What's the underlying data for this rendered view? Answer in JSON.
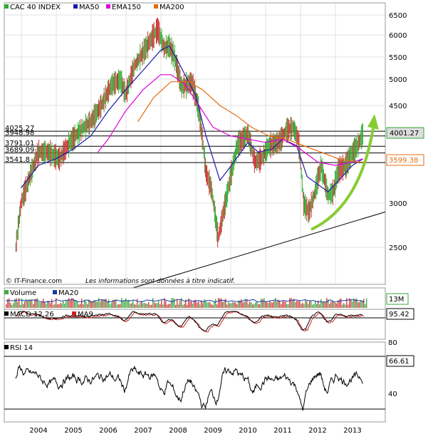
{
  "colors": {
    "price_up": "#33aa33",
    "price_down": "#cc3333",
    "ma50": "#1a1aaa",
    "ema150": "#dd00dd",
    "ma200": "#e86a10",
    "arrow": "#88cc33",
    "volume_up": "#44aa44",
    "volume_down": "#cc4444",
    "volume_ma20": "#1a3aaa",
    "macd": "#000000",
    "macd_signal": "#cc2222",
    "rsi": "#000000",
    "grid": "#e0e0e0",
    "label_box_highlight": "#dddddd"
  },
  "main_chart": {
    "legend": [
      {
        "label": "CAC 40 INDEX",
        "color": "#33aa33"
      },
      {
        "label": "MA50",
        "color": "#1a1aaa"
      },
      {
        "label": "EMA150",
        "color": "#dd00dd"
      },
      {
        "label": "MA200",
        "color": "#e86a10"
      }
    ],
    "source": "© IT-Finance.com",
    "disclaimer": "Les informations sont données à titre indicatif.",
    "last_value": "4001.27",
    "ma_value": "3599.38"
  },
  "volume_panel": {
    "legend": [
      {
        "label": "Volume",
        "color": "#44aa44"
      },
      {
        "label": "MA20",
        "color": "#1a3aaa"
      }
    ],
    "last_value": "13M"
  },
  "macd_panel": {
    "legend": [
      {
        "label": "MACD 12.26",
        "color": "#000000"
      },
      {
        "label": "MA9",
        "color": "#cc2222"
      }
    ],
    "last_value": "95.42"
  },
  "rsi_panel": {
    "legend": [
      {
        "label": "RSI 14",
        "color": "#000000"
      }
    ],
    "last_value": "66.61",
    "ticks": [
      "80",
      "40"
    ]
  },
  "chart_data": {
    "type": "line",
    "title": "CAC 40 INDEX",
    "x_ticks": [
      "2004",
      "2005",
      "2006",
      "2007",
      "2008",
      "2009",
      "2010",
      "2011",
      "2012",
      "2013"
    ],
    "y_ticks": [
      "6500",
      "6000",
      "5500",
      "5000",
      "4500",
      "3000",
      "2500"
    ],
    "ylim": [
      2000,
      6500
    ],
    "horizontal_levels": [
      {
        "label": "4025.27",
        "value": 4025.27
      },
      {
        "label": "3948.98",
        "value": 3948.98
      },
      {
        "label": "3791.01",
        "value": 3791.01
      },
      {
        "label": "3689.09",
        "value": 3689.09
      },
      {
        "label": "3541.8",
        "value": 3541.8
      }
    ],
    "series": [
      {
        "name": "CAC 40 INDEX",
        "x": [
          2003.35,
          2003.5,
          2003.75,
          2004.0,
          2004.3,
          2004.6,
          2004.9,
          2005.2,
          2005.5,
          2005.8,
          2006.1,
          2006.35,
          2006.5,
          2006.75,
          2007.0,
          2007.3,
          2007.42,
          2007.6,
          2007.75,
          2007.9,
          2008.1,
          2008.4,
          2008.6,
          2008.8,
          2008.95,
          2009.15,
          2009.4,
          2009.7,
          2010.0,
          2010.2,
          2010.4,
          2010.6,
          2010.9,
          2011.1,
          2011.3,
          2011.45,
          2011.6,
          2011.75,
          2011.9,
          2012.1,
          2012.3,
          2012.45,
          2012.6,
          2012.8,
          2013.0,
          2013.15,
          2013.3
        ],
        "values": [
          2500,
          3000,
          3350,
          3700,
          3700,
          3600,
          3850,
          4050,
          4200,
          4500,
          4900,
          5000,
          4700,
          5300,
          5600,
          6000,
          6150,
          5700,
          5750,
          5500,
          4850,
          4950,
          4400,
          3400,
          3200,
          2600,
          3100,
          3800,
          4000,
          3550,
          3600,
          3800,
          3850,
          4050,
          4100,
          3900,
          3000,
          2900,
          3100,
          3500,
          3100,
          3150,
          3450,
          3500,
          3700,
          3800,
          4000
        ]
      },
      {
        "name": "MA50",
        "x": [
          2003.5,
          2004.0,
          2004.5,
          2005.0,
          2005.5,
          2006.0,
          2006.5,
          2007.0,
          2007.5,
          2007.75,
          2008.0,
          2008.5,
          2008.8,
          2009.2,
          2009.6,
          2010.0,
          2010.3,
          2010.7,
          2011.0,
          2011.4,
          2011.7,
          2012.0,
          2012.3,
          2012.6,
          2013.0,
          2013.3
        ],
        "values": [
          3200,
          3500,
          3600,
          3750,
          3950,
          4400,
          4800,
          5200,
          5650,
          5750,
          5400,
          4700,
          3950,
          3300,
          3550,
          3850,
          3700,
          3750,
          3900,
          3800,
          3350,
          3250,
          3150,
          3300,
          3500,
          3600
        ]
      },
      {
        "name": "EMA150",
        "x": [
          2005.7,
          2006.0,
          2006.5,
          2007.0,
          2007.5,
          2007.8,
          2008.2,
          2008.6,
          2009.0,
          2009.5,
          2010.0,
          2010.5,
          2011.0,
          2011.5,
          2012.0,
          2012.5,
          2013.0,
          2013.3
        ],
        "values": [
          3700,
          3900,
          4400,
          4800,
          5100,
          5100,
          4900,
          4500,
          4100,
          3950,
          3900,
          3850,
          3900,
          3750,
          3550,
          3500,
          3550,
          3600
        ]
      },
      {
        "name": "MA200",
        "x": [
          2006.85,
          2007.3,
          2007.8,
          2008.3,
          2008.7,
          2009.2,
          2009.7,
          2010.1,
          2010.6,
          2011.1,
          2011.6,
          2012.1,
          2012.6,
          2013.1,
          2013.3
        ],
        "values": [
          4200,
          4650,
          4950,
          4950,
          4800,
          4500,
          4300,
          4100,
          3950,
          3900,
          3800,
          3700,
          3600,
          3550,
          3550
        ]
      }
    ],
    "support_line": {
      "x": [
        2006.3,
        2013.8
      ],
      "values": [
        2000,
        2900
      ]
    },
    "rsi_range": [
      20,
      90
    ],
    "xlabel": "",
    "ylabel": ""
  }
}
